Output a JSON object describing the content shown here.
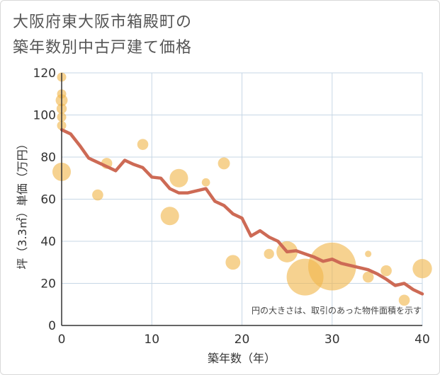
{
  "chart_data": {
    "type": "scatter",
    "title_line1": "大阪府東大阪市箱殿町の",
    "title_line2": "築年数別中古戸建て価格",
    "xlabel": "築年数（年）",
    "ylabel": "坪（3.3㎡）単価（万円）",
    "xlim": [
      0,
      40
    ],
    "ylim": [
      0,
      120
    ],
    "xticks": [
      "0",
      "10",
      "20",
      "30",
      "40"
    ],
    "yticks": [
      "0",
      "20",
      "40",
      "60",
      "80",
      "100",
      "120"
    ],
    "note": "円の大きさは、取引のあった物件面積を示す",
    "colors": {
      "bubble": "#f0b64c",
      "line": "#cd6a55",
      "grid": "#c7d7e6",
      "axis": "#333333"
    },
    "bubbles": [
      {
        "x": 0,
        "y": 118,
        "s": 1
      },
      {
        "x": 0,
        "y": 110,
        "s": 1
      },
      {
        "x": 0,
        "y": 107,
        "s": 1.3
      },
      {
        "x": 0,
        "y": 103,
        "s": 1.1
      },
      {
        "x": 0,
        "y": 99,
        "s": 1
      },
      {
        "x": 0,
        "y": 95,
        "s": 1
      },
      {
        "x": 0,
        "y": 73,
        "s": 2
      },
      {
        "x": 4,
        "y": 62,
        "s": 1.2
      },
      {
        "x": 5,
        "y": 77,
        "s": 1.2
      },
      {
        "x": 9,
        "y": 86,
        "s": 1.2
      },
      {
        "x": 12,
        "y": 52,
        "s": 2
      },
      {
        "x": 13,
        "y": 70,
        "s": 2
      },
      {
        "x": 16,
        "y": 68,
        "s": 0.9
      },
      {
        "x": 18,
        "y": 77,
        "s": 1.3
      },
      {
        "x": 19,
        "y": 30,
        "s": 1.6
      },
      {
        "x": 23,
        "y": 34,
        "s": 1.1
      },
      {
        "x": 25,
        "y": 35,
        "s": 2.3
      },
      {
        "x": 27,
        "y": 23,
        "s": 4
      },
      {
        "x": 30,
        "y": 28,
        "s": 5.2
      },
      {
        "x": 34,
        "y": 34,
        "s": 0.7
      },
      {
        "x": 34,
        "y": 23,
        "s": 1.2
      },
      {
        "x": 36,
        "y": 26,
        "s": 1.2
      },
      {
        "x": 38,
        "y": 12,
        "s": 1.2
      },
      {
        "x": 40,
        "y": 27,
        "s": 2.1
      }
    ],
    "line": {
      "x": [
        0,
        1,
        2,
        3,
        4,
        5,
        6,
        7,
        8,
        9,
        10,
        11,
        12,
        13,
        14,
        15,
        16,
        17,
        18,
        19,
        20,
        21,
        22,
        23,
        24,
        25,
        26,
        27,
        28,
        29,
        30,
        31,
        32,
        33,
        34,
        35,
        36,
        37,
        38,
        39,
        40
      ],
      "y": [
        93,
        91,
        85.5,
        79.5,
        77.5,
        75.5,
        73.5,
        78.5,
        76.5,
        75,
        70.5,
        70,
        65,
        63,
        63,
        64,
        65,
        59,
        57,
        53,
        51,
        42.5,
        45,
        42,
        40,
        35,
        35.5,
        34,
        32.5,
        30.5,
        31.5,
        29.5,
        28.5,
        27.5,
        26.5,
        24.5,
        22,
        19,
        20,
        17,
        15
      ]
    }
  }
}
